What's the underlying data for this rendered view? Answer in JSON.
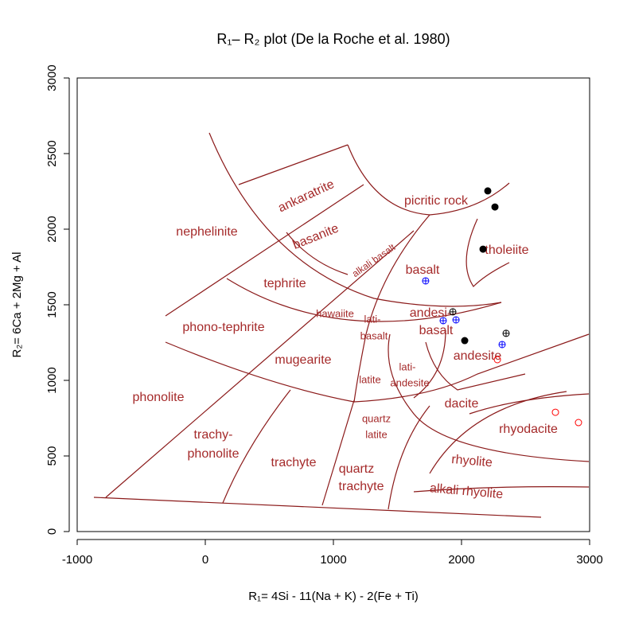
{
  "chart_data": {
    "type": "scatter",
    "title": "R₁– R₂ plot (De la Roche et al. 1980)",
    "x_label": "R₁= 4Si - 11(Na + K) - 2(Fe + Ti)",
    "y_label": "R₂= 6Ca + 2Mg + Al",
    "xlim": [
      -1000,
      3000
    ],
    "ylim": [
      0,
      3000
    ],
    "xticks": [
      -1000,
      0,
      1000,
      2000,
      3000
    ],
    "yticks": [
      0,
      500,
      1000,
      1500,
      2000,
      2500,
      3000
    ],
    "field_labels": [
      "ankaratrite",
      "picritic rock",
      "nephelinite",
      "basanite",
      "alkali basalt",
      "tholeiite",
      "basalt",
      "tephrite",
      "hawaiite",
      "lati-",
      "basalt",
      "andesi-",
      "basalt",
      "phono-tephrite",
      "andesite",
      "mugearite",
      "latite",
      "lati-",
      "andesite",
      "dacite",
      "phonolite",
      "quartz",
      "latite",
      "rhyodacite",
      "trachy-",
      "phonolite",
      "rhyolite",
      "trachyte",
      "quartz",
      "trachyte",
      "alkali rhyolite"
    ],
    "series": [
      {
        "color": "#000000",
        "marker": "filled",
        "x": [
          2205,
          2261,
          2168,
          2025
        ],
        "y": [
          2253,
          2147,
          1868,
          1263
        ]
      },
      {
        "color": "#000000",
        "marker": "cross",
        "x": [
          1932,
          2348
        ],
        "y": [
          1453,
          1311
        ]
      },
      {
        "color": "#0000ff",
        "marker": "cross",
        "x": [
          1720,
          1857,
          1957,
          2317
        ],
        "y": [
          1658,
          1395,
          1400,
          1237
        ]
      },
      {
        "color": "#ff0000",
        "marker": "open",
        "x": [
          2280,
          2733,
          2913
        ],
        "y": [
          1137,
          789,
          721
        ]
      }
    ]
  }
}
